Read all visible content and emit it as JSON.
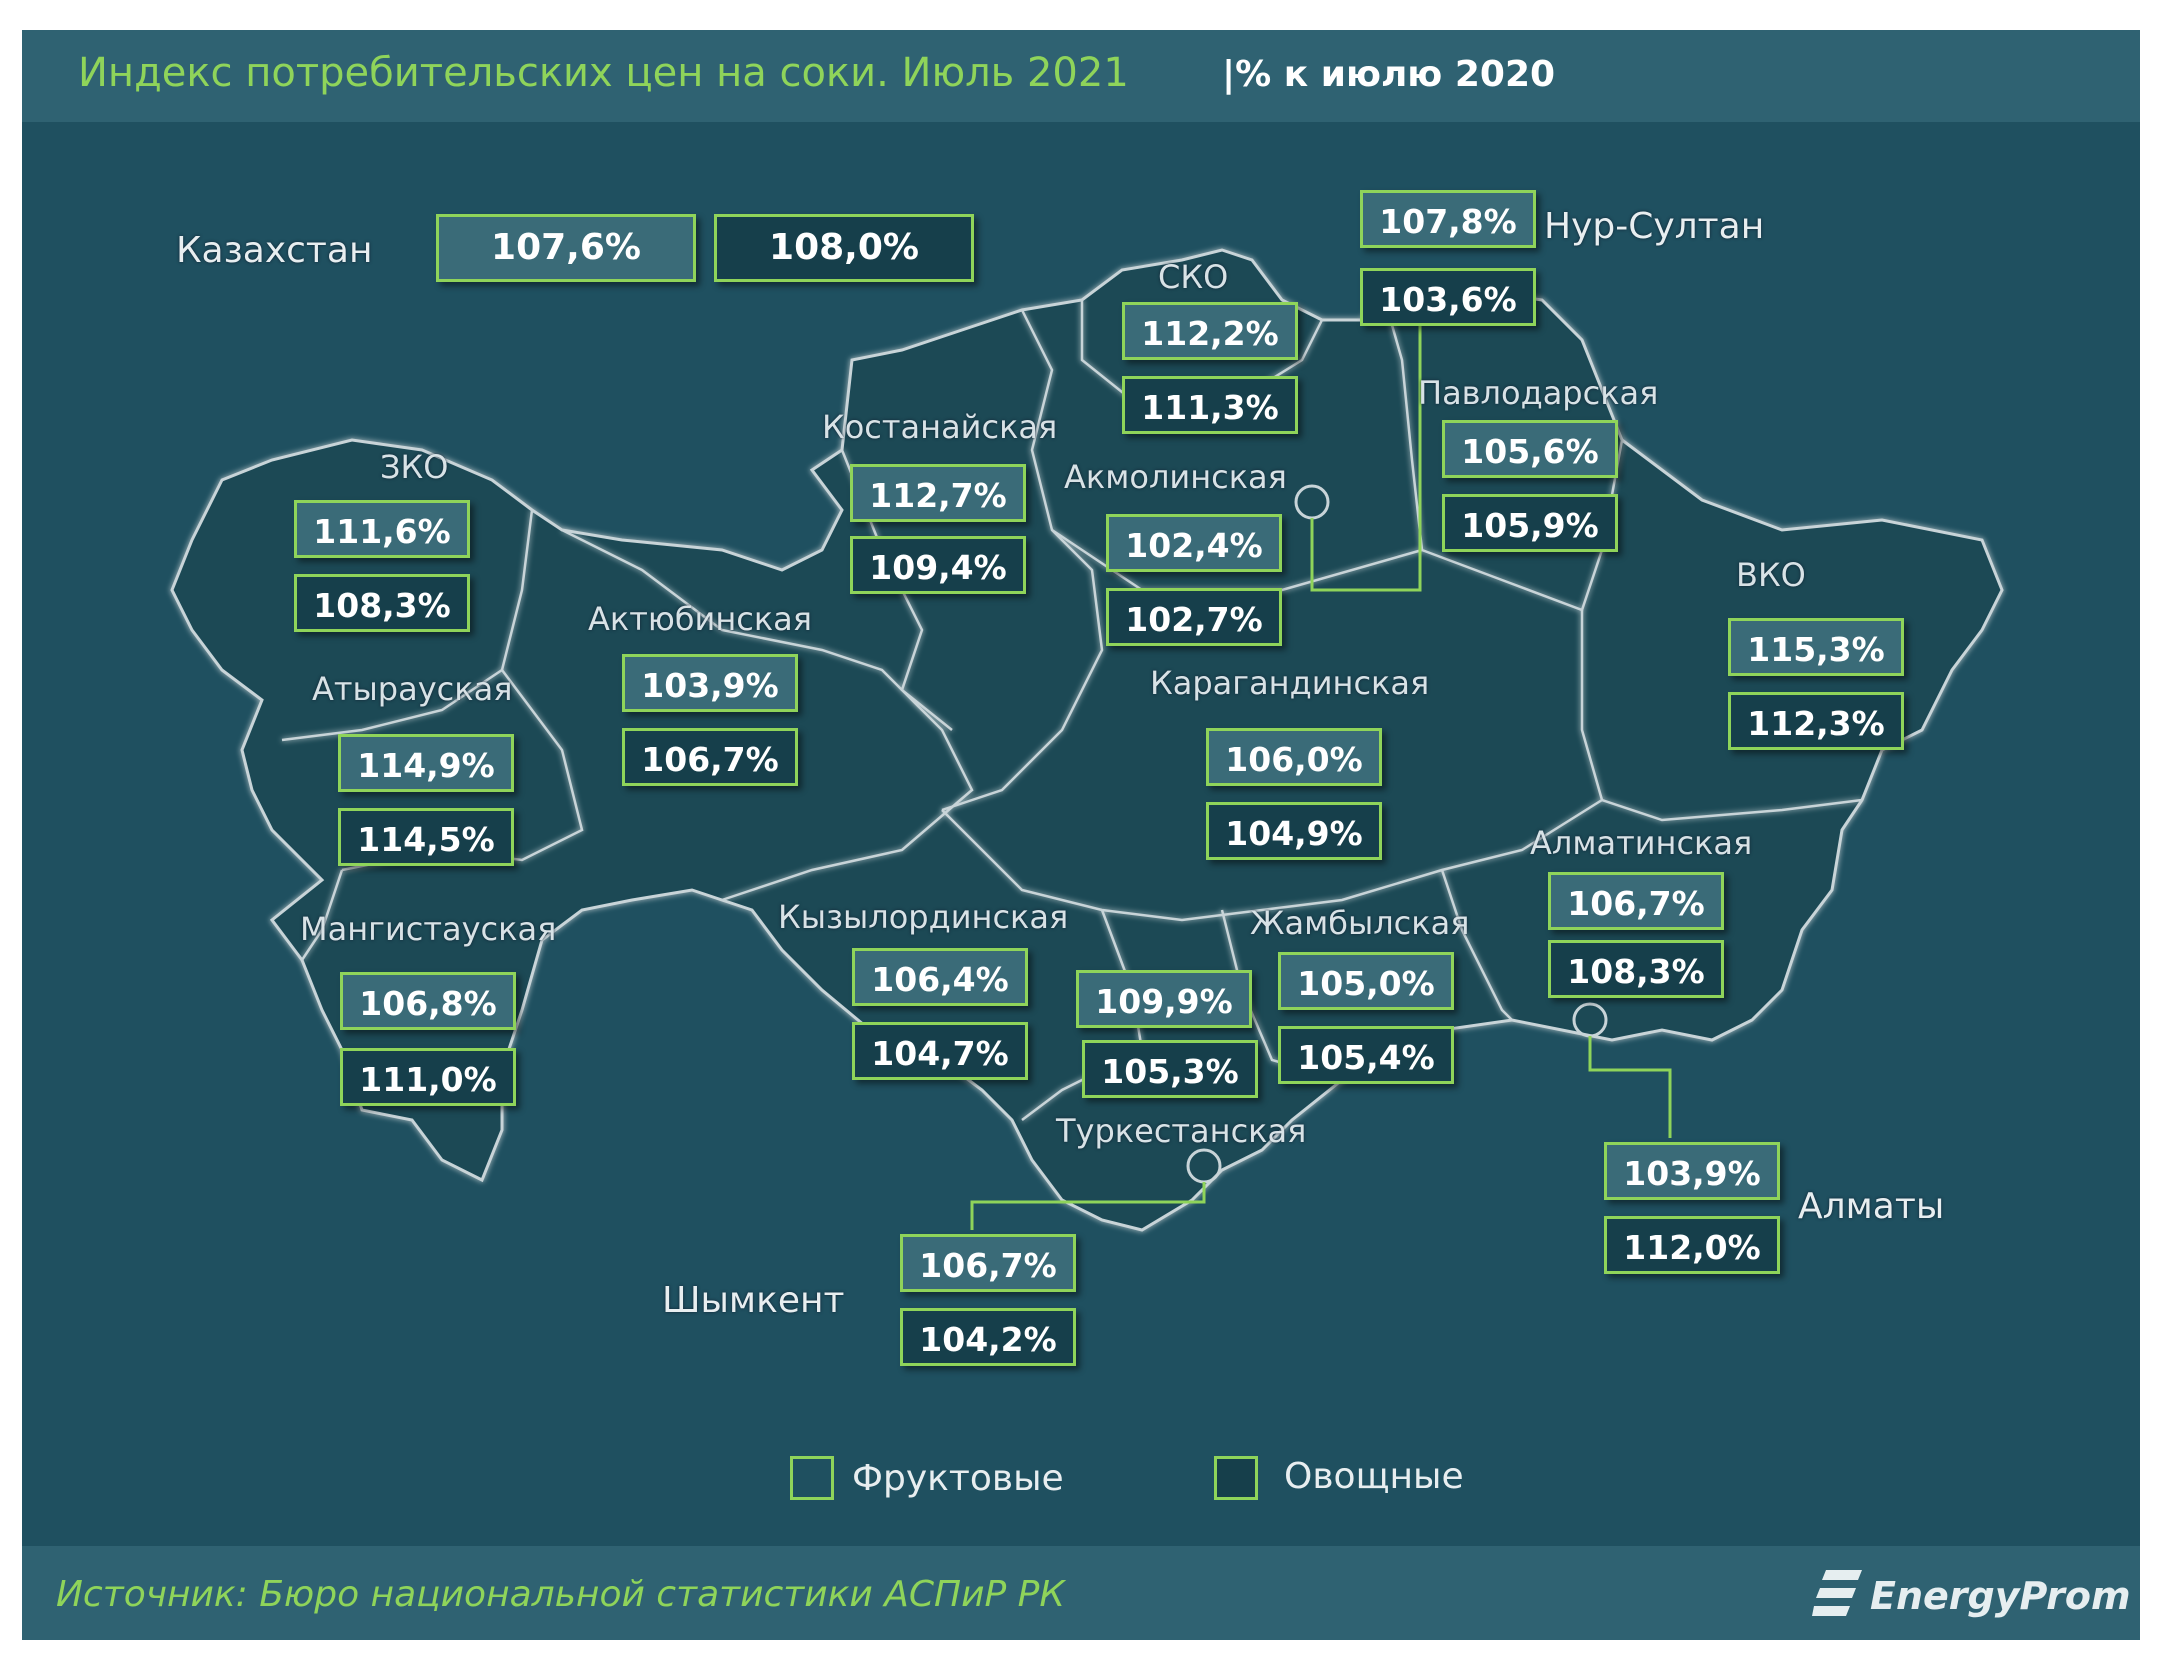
{
  "title": "Индекс потребительских цен на соки. Июль 2021",
  "subtitle": "|% к июлю 2020",
  "source": "Источник: Бюро национальной статистики АСПиР РК",
  "logo": "EnergyProm",
  "colors": {
    "background": "#1f5060",
    "accent": "#8fd45a",
    "fruit_box": "#3a6b78",
    "veg_box": "#163f4b"
  },
  "legend": {
    "fruit": "Фруктовые",
    "veg": "Овощные"
  },
  "kazakhstan": {
    "name": "Казахстан",
    "fruit": "107,6%",
    "veg": "108,0%"
  },
  "regions": [
    {
      "name": "ЗКО",
      "fruit": "111,6%",
      "veg": "108,3%"
    },
    {
      "name": "Атырауская",
      "fruit": "114,9%",
      "veg": "114,5%"
    },
    {
      "name": "Мангистауская",
      "fruit": "106,8%",
      "veg": "111,0%"
    },
    {
      "name": "Актюбинская",
      "fruit": "103,9%",
      "veg": "106,7%"
    },
    {
      "name": "Костанайская",
      "fruit": "112,7%",
      "veg": "109,4%"
    },
    {
      "name": "СКО",
      "fruit": "112,2%",
      "veg": "111,3%"
    },
    {
      "name": "Акмолинская",
      "fruit": "102,4%",
      "veg": "102,7%"
    },
    {
      "name": "Нур-Султан",
      "fruit": "107,8%",
      "veg": "103,6%"
    },
    {
      "name": "Павлодарская",
      "fruit": "105,6%",
      "veg": "105,9%"
    },
    {
      "name": "ВКО",
      "fruit": "115,3%",
      "veg": "112,3%"
    },
    {
      "name": "Карагандинская",
      "fruit": "106,0%",
      "veg": "104,9%"
    },
    {
      "name": "Кызылординская",
      "fruit": "106,4%",
      "veg": "104,7%"
    },
    {
      "name": "Туркестанская",
      "fruit": "109,9%",
      "veg": "105,3%"
    },
    {
      "name": "Жамбылская",
      "fruit": "105,0%",
      "veg": "105,4%"
    },
    {
      "name": "Алматинская",
      "fruit": "106,7%",
      "veg": "108,3%"
    },
    {
      "name": "Алматы",
      "fruit": "103,9%",
      "veg": "112,0%"
    },
    {
      "name": "Шымкент",
      "fruit": "106,7%",
      "veg": "104,2%"
    }
  ]
}
